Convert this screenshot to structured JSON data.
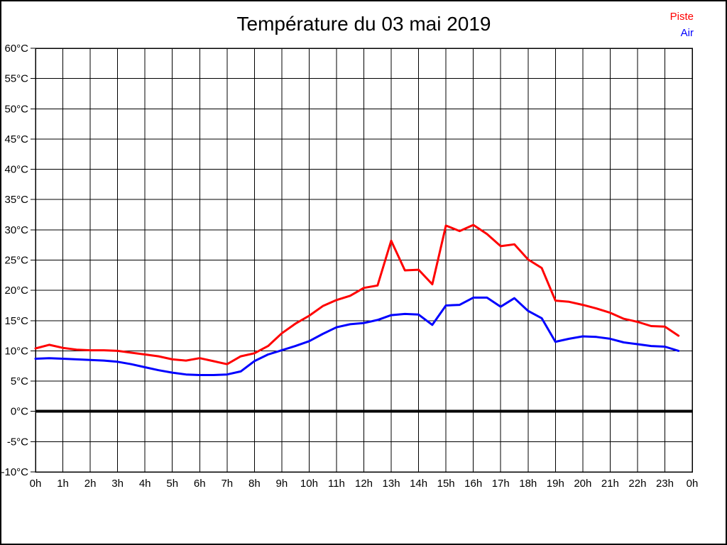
{
  "page": {
    "title": "Température du 03 mai 2019"
  },
  "legend": {
    "position": "top-right",
    "items": [
      {
        "label": "Piste",
        "color": "#ff0000"
      },
      {
        "label": "Air",
        "color": "#0000ff"
      }
    ]
  },
  "chart_data": {
    "type": "line",
    "title": "Température du 03 mai 2019",
    "xlabel": "",
    "ylabel": "",
    "xlim": [
      0,
      24
    ],
    "ylim": [
      -10,
      60
    ],
    "grid": true,
    "grid_color": "#000000",
    "background": "#ffffff",
    "zero_line": {
      "value": 0,
      "color": "#000000",
      "width": 4
    },
    "x_tick_labels": [
      "0h",
      "1h",
      "2h",
      "3h",
      "4h",
      "5h",
      "6h",
      "7h",
      "8h",
      "9h",
      "10h",
      "11h",
      "12h",
      "13h",
      "14h",
      "15h",
      "16h",
      "17h",
      "18h",
      "19h",
      "20h",
      "21h",
      "22h",
      "23h",
      "0h"
    ],
    "y_ticks": [
      -10,
      -5,
      0,
      5,
      10,
      15,
      20,
      25,
      30,
      35,
      40,
      45,
      50,
      55,
      60
    ],
    "y_tick_suffix": "°C",
    "x": [
      0,
      0.5,
      1,
      1.5,
      2,
      2.5,
      3,
      3.5,
      4,
      4.5,
      5,
      5.5,
      6,
      6.5,
      7,
      7.5,
      8,
      8.5,
      9,
      9.5,
      10,
      10.5,
      11,
      11.5,
      12,
      12.5,
      13,
      13.5,
      14,
      14.5,
      15,
      15.5,
      16,
      16.5,
      17,
      17.5,
      18,
      18.5,
      19,
      19.5,
      20,
      20.5,
      21,
      21.5,
      22,
      22.5,
      23,
      23.5
    ],
    "series": [
      {
        "name": "Piste",
        "color": "#ff0000",
        "line_width": 3,
        "values": [
          10.4,
          11.0,
          10.5,
          10.2,
          10.1,
          10.1,
          10.0,
          9.7,
          9.4,
          9.1,
          8.6,
          8.4,
          8.8,
          8.3,
          7.8,
          9.1,
          9.6,
          10.8,
          12.9,
          14.5,
          15.8,
          17.4,
          18.4,
          19.1,
          20.4,
          20.8,
          28.2,
          23.3,
          23.4,
          21.0,
          30.7,
          29.8,
          30.8,
          29.3,
          27.3,
          27.6,
          25.1,
          23.7,
          18.3,
          18.1,
          17.6,
          17.0,
          16.3,
          15.3,
          14.8,
          14.1,
          14.0,
          12.5
        ]
      },
      {
        "name": "Air",
        "color": "#0000ff",
        "line_width": 3,
        "values": [
          8.7,
          8.8,
          8.7,
          8.6,
          8.5,
          8.4,
          8.2,
          7.8,
          7.3,
          6.8,
          6.4,
          6.1,
          6.0,
          6.0,
          6.1,
          6.6,
          8.3,
          9.4,
          10.1,
          10.8,
          11.6,
          12.8,
          13.9,
          14.4,
          14.6,
          15.1,
          15.9,
          16.1,
          16.0,
          14.3,
          17.5,
          17.6,
          18.8,
          18.8,
          17.3,
          18.7,
          16.6,
          15.4,
          11.5,
          12.0,
          12.4,
          12.3,
          12.0,
          11.4,
          11.1,
          10.8,
          10.7,
          10.0
        ]
      }
    ]
  }
}
